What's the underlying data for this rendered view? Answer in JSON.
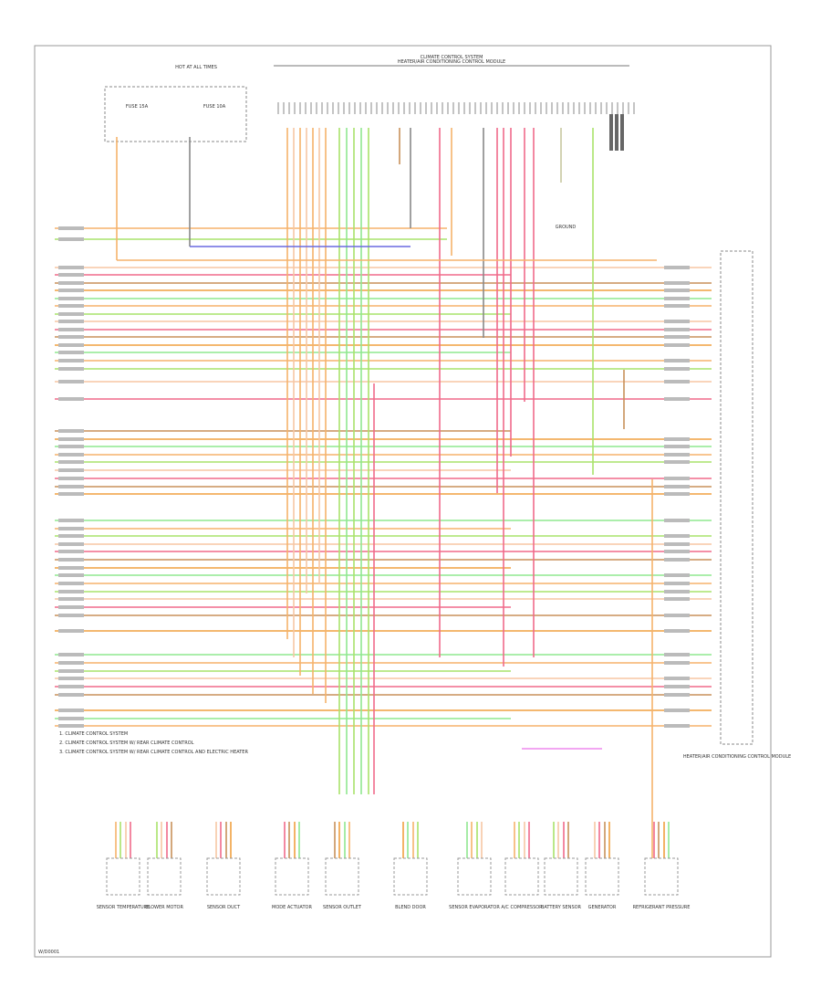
{
  "header": {
    "title": "CLIMATE CONTROL SYSTEM",
    "subtitle": "HEATER/AIR CONDITIONING CONTROL MODULE"
  },
  "fuse_box": {
    "title": "HOT AT ALL TIMES",
    "left": "FUSE 15A",
    "right": "FUSE 10A"
  },
  "ground": "GROUND",
  "connector": "HEATER/AIR CONDITIONING CONTROL MODULE",
  "notes": [
    "1. CLIMATE CONTROL SYSTEM",
    "2. CLIMATE CONTROL SYSTEM W/ REAR CLIMATE CONTROL",
    "3. CLIMATE CONTROL SYSTEM W/ REAR CLIMATE CONTROL AND ELECTRIC HEATER"
  ],
  "components": [
    {
      "label": "SENSOR TEMPERATURE"
    },
    {
      "label": "BLOWER MOTOR"
    },
    {
      "label": "SENSOR DUCT"
    },
    {
      "label": "MODE ACTUATOR"
    },
    {
      "label": "SENSOR OUTLET"
    },
    {
      "label": "BLEND DOOR"
    },
    {
      "label": "SENSOR EVAPORATOR"
    },
    {
      "label": "A/C COMPRESSOR"
    },
    {
      "label": "BATTERY SENSOR"
    },
    {
      "label": "GENERATOR"
    },
    {
      "label": "REFRIGERANT PRESSURE"
    }
  ],
  "footer": "W/D0001"
}
